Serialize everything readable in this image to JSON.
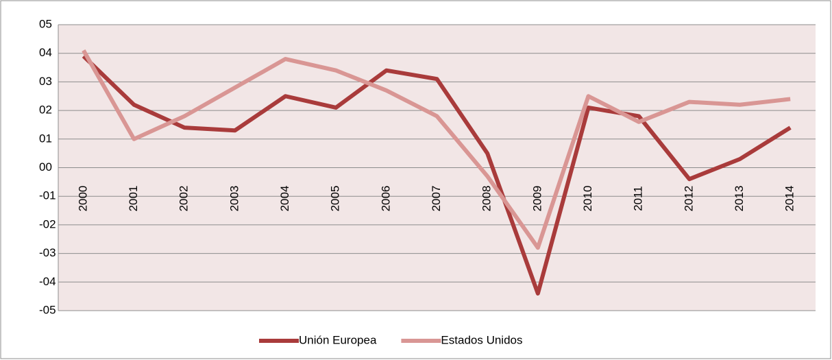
{
  "chart_data": {
    "type": "line",
    "categories": [
      "2000",
      "2001",
      "2002",
      "2003",
      "2004",
      "2005",
      "2006",
      "2007",
      "2008",
      "2009",
      "2010",
      "2011",
      "2012",
      "2013",
      "2014"
    ],
    "series": [
      {
        "name": "Unión Europea",
        "color": "#a93b3b",
        "values": [
          3.9,
          2.2,
          1.4,
          1.3,
          2.5,
          2.1,
          3.4,
          3.1,
          0.5,
          -4.4,
          2.1,
          1.8,
          -0.4,
          0.3,
          1.4
        ]
      },
      {
        "name": "Estados Unidos",
        "color": "#d99694",
        "values": [
          4.1,
          1.0,
          1.8,
          2.8,
          3.8,
          3.4,
          2.7,
          1.8,
          -0.3,
          -2.8,
          2.5,
          1.6,
          2.3,
          2.2,
          2.4
        ]
      }
    ],
    "ylim": [
      -5,
      5
    ],
    "yticks": [
      {
        "value": -5,
        "label": "-05"
      },
      {
        "value": -4,
        "label": "-04"
      },
      {
        "value": -3,
        "label": "-03"
      },
      {
        "value": -2,
        "label": "-02"
      },
      {
        "value": -1,
        "label": "-01"
      },
      {
        "value": 0,
        "label": "00"
      },
      {
        "value": 1,
        "label": "01"
      },
      {
        "value": 2,
        "label": "02"
      },
      {
        "value": 3,
        "label": "03"
      },
      {
        "value": 4,
        "label": "04"
      },
      {
        "value": 5,
        "label": "05"
      }
    ],
    "grid": true,
    "legend": "bottom"
  }
}
